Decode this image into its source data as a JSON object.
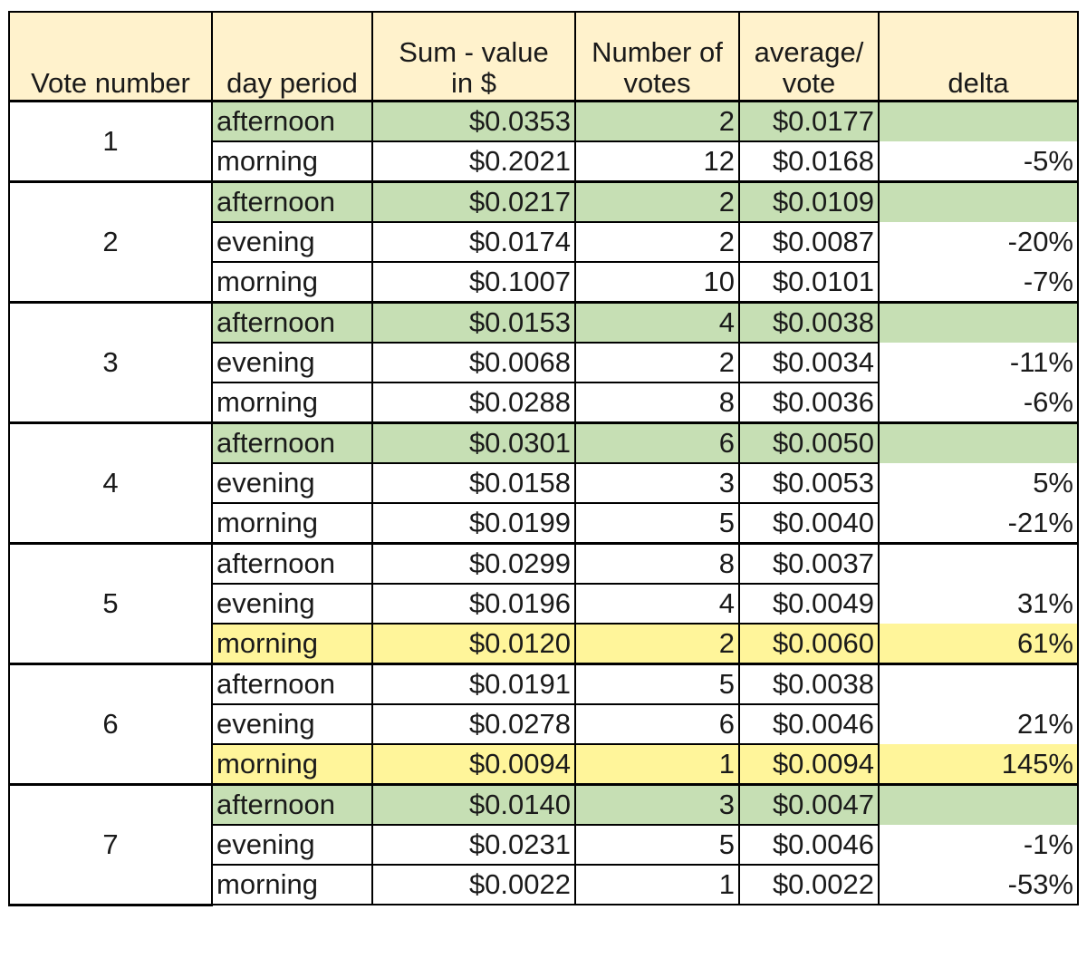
{
  "headers": [
    {
      "line1": "",
      "line2": "Vote number"
    },
    {
      "line1": "",
      "line2": "day period"
    },
    {
      "line1": "Sum - value",
      "line2": "in $"
    },
    {
      "line1": "Number of",
      "line2": "votes"
    },
    {
      "line1": "average/",
      "line2": "vote"
    },
    {
      "line1": "",
      "line2": "delta"
    }
  ],
  "highlight_colors": {
    "green": "#c6dfb4",
    "yellow": "#fff59a",
    "header": "#fff2cc"
  },
  "groups": [
    {
      "vote": "1",
      "rows": [
        {
          "period": "afternoon",
          "sum": "$0.0353",
          "votes": "2",
          "avg": "$0.0177",
          "delta": "",
          "highlight": "green"
        },
        {
          "period": "morning",
          "sum": "$0.2021",
          "votes": "12",
          "avg": "$0.0168",
          "delta": "-5%",
          "highlight": ""
        }
      ]
    },
    {
      "vote": "2",
      "rows": [
        {
          "period": "afternoon",
          "sum": "$0.0217",
          "votes": "2",
          "avg": "$0.0109",
          "delta": "",
          "highlight": "green"
        },
        {
          "period": "evening",
          "sum": "$0.0174",
          "votes": "2",
          "avg": "$0.0087",
          "delta": "-20%",
          "highlight": ""
        },
        {
          "period": "morning",
          "sum": "$0.1007",
          "votes": "10",
          "avg": "$0.0101",
          "delta": "-7%",
          "highlight": ""
        }
      ]
    },
    {
      "vote": "3",
      "rows": [
        {
          "period": "afternoon",
          "sum": "$0.0153",
          "votes": "4",
          "avg": "$0.0038",
          "delta": "",
          "highlight": "green"
        },
        {
          "period": "evening",
          "sum": "$0.0068",
          "votes": "2",
          "avg": "$0.0034",
          "delta": "-11%",
          "highlight": ""
        },
        {
          "period": "morning",
          "sum": "$0.0288",
          "votes": "8",
          "avg": "$0.0036",
          "delta": "-6%",
          "highlight": ""
        }
      ]
    },
    {
      "vote": "4",
      "rows": [
        {
          "period": "afternoon",
          "sum": "$0.0301",
          "votes": "6",
          "avg": "$0.0050",
          "delta": "",
          "highlight": "green"
        },
        {
          "period": "evening",
          "sum": "$0.0158",
          "votes": "3",
          "avg": "$0.0053",
          "delta": "5%",
          "highlight": ""
        },
        {
          "period": "morning",
          "sum": "$0.0199",
          "votes": "5",
          "avg": "$0.0040",
          "delta": "-21%",
          "highlight": ""
        }
      ]
    },
    {
      "vote": "5",
      "rows": [
        {
          "period": "afternoon",
          "sum": "$0.0299",
          "votes": "8",
          "avg": "$0.0037",
          "delta": "",
          "highlight": ""
        },
        {
          "period": "evening",
          "sum": "$0.0196",
          "votes": "4",
          "avg": "$0.0049",
          "delta": "31%",
          "highlight": ""
        },
        {
          "period": "morning",
          "sum": "$0.0120",
          "votes": "2",
          "avg": "$0.0060",
          "delta": "61%",
          "highlight": "yellow"
        }
      ]
    },
    {
      "vote": "6",
      "rows": [
        {
          "period": "afternoon",
          "sum": "$0.0191",
          "votes": "5",
          "avg": "$0.0038",
          "delta": "",
          "highlight": ""
        },
        {
          "period": "evening",
          "sum": "$0.0278",
          "votes": "6",
          "avg": "$0.0046",
          "delta": "21%",
          "highlight": ""
        },
        {
          "period": "morning",
          "sum": "$0.0094",
          "votes": "1",
          "avg": "$0.0094",
          "delta": "145%",
          "highlight": "yellow"
        }
      ]
    },
    {
      "vote": "7",
      "rows": [
        {
          "period": "afternoon",
          "sum": "$0.0140",
          "votes": "3",
          "avg": "$0.0047",
          "delta": "",
          "highlight": "green"
        },
        {
          "period": "evening",
          "sum": "$0.0231",
          "votes": "5",
          "avg": "$0.0046",
          "delta": "-1%",
          "highlight": ""
        },
        {
          "period": "morning",
          "sum": "$0.0022",
          "votes": "1",
          "avg": "$0.0022",
          "delta": "-53%",
          "highlight": ""
        }
      ]
    }
  ]
}
